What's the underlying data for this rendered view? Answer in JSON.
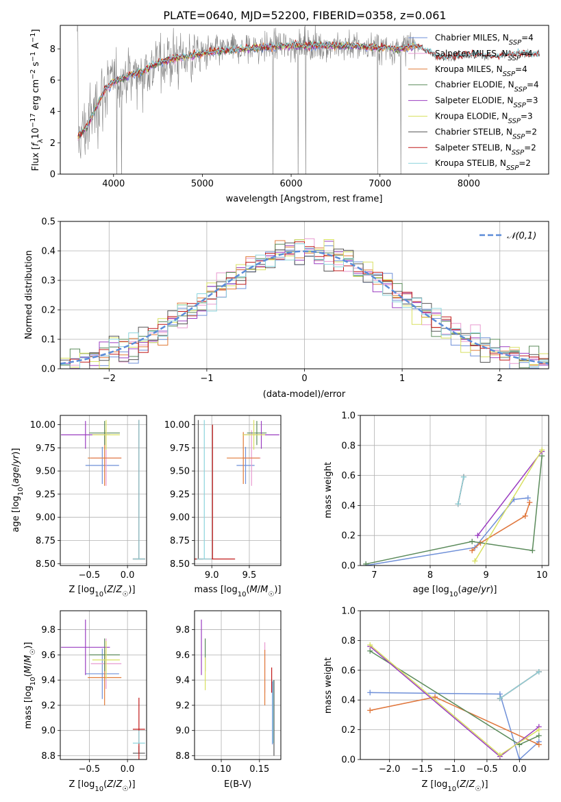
{
  "title": "PLATE=0640, MJD=52200, FIBERID=0358, z=0.061",
  "colors": {
    "Chabrier MILES": "#6e8fd8",
    "Salpeter MILES": "#e89ad0",
    "Kroupa MILES": "#e07a38",
    "Chabrier ELODIE": "#5a8a5a",
    "Salpeter ELODIE": "#9a3cc0",
    "Kroupa ELODIE": "#d8e060",
    "Chabrier STELIB": "#555555",
    "Salpeter STELIB": "#c01818",
    "Kroupa STELIB": "#8ad4dc",
    "data": "#808080",
    "normal": "#5b8bd8"
  },
  "chart_data": [
    {
      "type": "line",
      "xlabel": "wavelength [Angstrom, rest frame]",
      "ylabel": "Flux [f_λ 10^-17 erg cm^-2 s^-1 A^-1]",
      "xlim": [
        3400,
        8900
      ],
      "ylim": [
        0,
        9.5
      ],
      "xticks": [
        4000,
        5000,
        6000,
        7000,
        8000
      ],
      "yticks": [
        0,
        2,
        4,
        6,
        8
      ],
      "legend_position": "top-right",
      "legend": [
        {
          "name": "Chabrier MILES",
          "nssp": "4"
        },
        {
          "name": "Salpeter MILES",
          "nssp": "4"
        },
        {
          "name": "Kroupa MILES",
          "nssp": "4"
        },
        {
          "name": "Chabrier ELODIE",
          "nssp": "4"
        },
        {
          "name": "Salpeter ELODIE",
          "nssp": "3"
        },
        {
          "name": "Kroupa ELODIE",
          "nssp": "3"
        },
        {
          "name": "Chabrier STELIB",
          "nssp": "2"
        },
        {
          "name": "Salpeter STELIB",
          "nssp": "2"
        },
        {
          "name": "Kroupa STELIB",
          "nssp": "2"
        }
      ],
      "continuum": [
        [
          3600,
          2.4
        ],
        [
          3700,
          3.0
        ],
        [
          3800,
          4.2
        ],
        [
          3900,
          5.4
        ],
        [
          4000,
          5.9
        ],
        [
          4100,
          6.1
        ],
        [
          4200,
          6.4
        ],
        [
          4300,
          6.5
        ],
        [
          4400,
          6.8
        ],
        [
          4500,
          7.1
        ],
        [
          4700,
          7.4
        ],
        [
          4900,
          7.6
        ],
        [
          5100,
          7.8
        ],
        [
          5300,
          7.9
        ],
        [
          5500,
          8.0
        ],
        [
          5700,
          8.1
        ],
        [
          6000,
          8.2
        ],
        [
          6300,
          8.2
        ],
        [
          6600,
          8.2
        ],
        [
          6900,
          8.1
        ],
        [
          7200,
          8.0
        ],
        [
          7400,
          8.2
        ],
        [
          7700,
          7.4
        ],
        [
          8000,
          7.6
        ],
        [
          8300,
          7.5
        ],
        [
          8600,
          7.7
        ],
        [
          8800,
          7.6
        ]
      ]
    },
    {
      "type": "histogram",
      "xlabel": "(data-model)/error",
      "ylabel": "Normed distribution",
      "xlim": [
        -2.5,
        2.5
      ],
      "ylim": [
        0,
        0.5
      ],
      "xticks": [
        -2,
        -1,
        0,
        1,
        2
      ],
      "yticks": [
        0.0,
        0.1,
        0.2,
        0.3,
        0.4,
        0.5
      ],
      "legend": "𝒩(0,1)",
      "legend_position": "top-right",
      "bin_width": 0.1
    },
    {
      "type": "scatter",
      "xlabel": "Z [log10(Z/Z☉)]",
      "ylabel": "age  [log10(age/yr)]",
      "xlim": [
        -0.88,
        0.25
      ],
      "ylim": [
        8.48,
        10.1
      ],
      "xticks": [
        -0.5,
        0.0
      ],
      "yticks": [
        8.5,
        8.75,
        9.0,
        9.25,
        9.5,
        9.75,
        10.0
      ],
      "series": [
        {
          "name": "Chabrier MILES",
          "x": -0.33,
          "y": 9.56,
          "xerr": 0.22,
          "yerr": 0.2
        },
        {
          "name": "Salpeter MILES",
          "x": -0.28,
          "y": 9.64,
          "xerr": 0.2,
          "yerr": 0.3
        },
        {
          "name": "Kroupa MILES",
          "x": -0.3,
          "y": 9.64,
          "xerr": 0.22,
          "yerr": 0.3
        },
        {
          "name": "Chabrier ELODIE",
          "x": -0.3,
          "y": 9.91,
          "xerr": 0.2,
          "yerr": 0.13
        },
        {
          "name": "Salpeter ELODIE",
          "x": -0.55,
          "y": 9.89,
          "xerr": 0.32,
          "yerr": 0.15
        },
        {
          "name": "Kroupa ELODIE",
          "x": -0.28,
          "y": 9.89,
          "xerr": 0.18,
          "yerr": 0.16
        },
        {
          "name": "Chabrier STELIB",
          "x": 0.15,
          "y": 8.55,
          "xerr": 0.08,
          "yerr": 1.5
        },
        {
          "name": "Salpeter STELIB",
          "x": 0.15,
          "y": 8.55,
          "xerr": 0.08,
          "yerr": 1.5
        },
        {
          "name": "Kroupa STELIB",
          "x": 0.15,
          "y": 8.55,
          "xerr": 0.08,
          "yerr": 1.5
        }
      ]
    },
    {
      "type": "scatter",
      "xlabel": "mass [log10(M/M☉)]",
      "xlim": [
        8.77,
        9.92
      ],
      "ylim": [
        8.48,
        10.1
      ],
      "xticks": [
        9.0,
        9.5
      ],
      "yticks": [
        8.5,
        8.75,
        9.0,
        9.25,
        9.5,
        9.75,
        10.0
      ],
      "series": [
        {
          "name": "Chabrier MILES",
          "x": 9.45,
          "y": 9.56,
          "xerr": 0.12,
          "yerr": 0.2
        },
        {
          "name": "Salpeter MILES",
          "x": 9.53,
          "y": 9.64,
          "xerr": 0.12,
          "yerr": 0.3
        },
        {
          "name": "Kroupa MILES",
          "x": 9.42,
          "y": 9.64,
          "xerr": 0.22,
          "yerr": 0.28
        },
        {
          "name": "Chabrier ELODIE",
          "x": 9.6,
          "y": 9.91,
          "xerr": 0.13,
          "yerr": 0.13
        },
        {
          "name": "Salpeter ELODIE",
          "x": 9.66,
          "y": 9.89,
          "xerr": 0.24,
          "yerr": 0.15
        },
        {
          "name": "Kroupa ELODIE",
          "x": 9.56,
          "y": 9.89,
          "xerr": 0.15,
          "yerr": 0.16
        },
        {
          "name": "Chabrier STELIB",
          "x": 8.82,
          "y": 8.55,
          "xerr": 0.06,
          "yerr": 1.5
        },
        {
          "name": "Salpeter STELIB",
          "x": 9.01,
          "y": 8.55,
          "xerr": 0.3,
          "yerr": 1.45
        },
        {
          "name": "Kroupa STELIB",
          "x": 8.9,
          "y": 8.55,
          "xerr": 0.1,
          "yerr": 1.5
        }
      ]
    },
    {
      "type": "line",
      "xlabel": "age  [log10(age/yr)]",
      "ylabel": "mass weight",
      "xlim": [
        6.75,
        10.12
      ],
      "ylim": [
        0.0,
        1.0
      ],
      "xticks": [
        7,
        8,
        9,
        10
      ],
      "yticks": [
        0.0,
        0.2,
        0.4,
        0.6,
        0.8,
        1.0
      ],
      "series": [
        {
          "name": "Chabrier MILES",
          "points": [
            [
              6.85,
              0.0
            ],
            [
              8.8,
              0.12
            ],
            [
              9.5,
              0.44
            ],
            [
              9.75,
              0.45
            ]
          ]
        },
        {
          "name": "Salpeter MILES",
          "points": [
            [
              8.75,
              0.1
            ],
            [
              8.9,
              0.15
            ],
            [
              9.7,
              0.33
            ],
            [
              9.78,
              0.42
            ]
          ]
        },
        {
          "name": "Kroupa MILES",
          "points": [
            [
              8.75,
              0.1
            ],
            [
              8.9,
              0.15
            ],
            [
              9.7,
              0.33
            ],
            [
              9.78,
              0.42
            ]
          ]
        },
        {
          "name": "Chabrier ELODIE",
          "points": [
            [
              6.85,
              0.01
            ],
            [
              8.75,
              0.16
            ],
            [
              9.83,
              0.1
            ],
            [
              10.0,
              0.73
            ]
          ]
        },
        {
          "name": "Salpeter ELODIE",
          "points": [
            [
              8.85,
              0.2
            ],
            [
              10.0,
              0.76
            ]
          ]
        },
        {
          "name": "Kroupa ELODIE",
          "points": [
            [
              8.8,
              0.03
            ],
            [
              10.0,
              0.77
            ]
          ]
        },
        {
          "name": "Chabrier STELIB",
          "points": [
            [
              8.5,
              0.41
            ],
            [
              8.6,
              0.59
            ]
          ]
        },
        {
          "name": "Salpeter STELIB",
          "points": [
            [
              8.5,
              0.41
            ],
            [
              8.6,
              0.59
            ]
          ]
        },
        {
          "name": "Kroupa STELIB",
          "points": [
            [
              8.5,
              0.41
            ],
            [
              8.6,
              0.59
            ]
          ]
        }
      ]
    },
    {
      "type": "scatter",
      "xlabel": "Z [log10(Z/Z☉)]",
      "ylabel": "mass [log10(M/M☉)]",
      "xlim": [
        -0.88,
        0.25
      ],
      "ylim": [
        8.77,
        9.95
      ],
      "xticks": [
        -0.5,
        0.0
      ],
      "yticks": [
        8.8,
        9.0,
        9.2,
        9.4,
        9.6,
        9.8
      ],
      "series": [
        {
          "name": "Chabrier MILES",
          "x": -0.33,
          "y": 9.45,
          "xerr": 0.22,
          "yerr": 0.2
        },
        {
          "name": "Salpeter MILES",
          "x": -0.28,
          "y": 9.53,
          "xerr": 0.2,
          "yerr": 0.2
        },
        {
          "name": "Kroupa MILES",
          "x": -0.3,
          "y": 9.42,
          "xerr": 0.22,
          "yerr": 0.22
        },
        {
          "name": "Chabrier ELODIE",
          "x": -0.3,
          "y": 9.6,
          "xerr": 0.2,
          "yerr": 0.13
        },
        {
          "name": "Salpeter ELODIE",
          "x": -0.55,
          "y": 9.66,
          "xerr": 0.32,
          "yerr": 0.22
        },
        {
          "name": "Kroupa ELODIE",
          "x": -0.28,
          "y": 9.56,
          "xerr": 0.18,
          "yerr": 0.15
        },
        {
          "name": "Chabrier STELIB",
          "x": 0.15,
          "y": 8.82,
          "xerr": 0.08,
          "yerr": 0.06
        },
        {
          "name": "Salpeter STELIB",
          "x": 0.15,
          "y": 9.01,
          "xerr": 0.08,
          "yerr": 0.25
        },
        {
          "name": "Kroupa STELIB",
          "x": 0.15,
          "y": 8.9,
          "xerr": 0.08,
          "yerr": 0.1
        }
      ]
    },
    {
      "type": "scatter",
      "xlabel": "E(B-V)",
      "xlim": [
        0.065,
        0.178
      ],
      "ylim": [
        8.77,
        9.95
      ],
      "xticks": [
        0.1,
        0.15
      ],
      "yticks": [
        8.8,
        9.0,
        9.2,
        9.4,
        9.6,
        9.8
      ],
      "series": [
        {
          "name": "Chabrier MILES",
          "x": 0.167,
          "y": 9.14,
          "yerr": 0.25
        },
        {
          "name": "Salpeter MILES",
          "x": 0.157,
          "y": 9.5,
          "yerr": 0.2
        },
        {
          "name": "Kroupa MILES",
          "x": 0.157,
          "y": 9.42,
          "yerr": 0.22
        },
        {
          "name": "Chabrier ELODIE",
          "x": 0.079,
          "y": 9.6,
          "yerr": 0.13
        },
        {
          "name": "Salpeter ELODIE",
          "x": 0.074,
          "y": 9.66,
          "yerr": 0.22
        },
        {
          "name": "Kroupa ELODIE",
          "x": 0.079,
          "y": 9.45,
          "yerr": 0.13
        },
        {
          "name": "Chabrier STELIB",
          "x": 0.169,
          "y": 9.1,
          "yerr": 0.3
        },
        {
          "name": "Salpeter STELIB",
          "x": 0.166,
          "y": 9.4,
          "yerr": 0.1
        },
        {
          "name": "Kroupa STELIB",
          "x": 0.168,
          "y": 9.15,
          "yerr": 0.25
        }
      ]
    },
    {
      "type": "line",
      "xlabel": "Z [log10(Z/Z☉)]",
      "ylabel": "mass weight",
      "xlim": [
        -2.45,
        0.45
      ],
      "ylim": [
        0.0,
        1.0
      ],
      "xticks": [
        -2.0,
        -1.5,
        -1.0,
        -0.5,
        0.0
      ],
      "yticks": [
        0.0,
        0.2,
        0.4,
        0.6,
        0.8,
        1.0
      ],
      "series": [
        {
          "name": "Chabrier MILES",
          "points": [
            [
              -2.3,
              0.45
            ],
            [
              -0.3,
              0.44
            ],
            [
              0.0,
              0.0
            ],
            [
              0.3,
              0.12
            ]
          ]
        },
        {
          "name": "Salpeter MILES",
          "points": [
            [
              -2.3,
              0.33
            ],
            [
              -1.3,
              0.42
            ],
            [
              0.3,
              0.1
            ]
          ]
        },
        {
          "name": "Kroupa MILES",
          "points": [
            [
              -2.3,
              0.33
            ],
            [
              -1.3,
              0.42
            ],
            [
              0.3,
              0.1
            ]
          ]
        },
        {
          "name": "Chabrier ELODIE",
          "points": [
            [
              -2.3,
              0.73
            ],
            [
              0.0,
              0.1
            ],
            [
              0.3,
              0.16
            ]
          ]
        },
        {
          "name": "Salpeter ELODIE",
          "points": [
            [
              -2.3,
              0.76
            ],
            [
              -0.3,
              0.02
            ],
            [
              0.3,
              0.22
            ]
          ]
        },
        {
          "name": "Kroupa ELODIE",
          "points": [
            [
              -2.3,
              0.77
            ],
            [
              -0.3,
              0.03
            ],
            [
              0.3,
              0.2
            ]
          ]
        },
        {
          "name": "Chabrier STELIB",
          "points": [
            [
              -0.3,
              0.41
            ],
            [
              0.3,
              0.59
            ]
          ]
        },
        {
          "name": "Salpeter STELIB",
          "points": [
            [
              -0.3,
              0.41
            ],
            [
              0.3,
              0.59
            ]
          ]
        },
        {
          "name": "Kroupa STELIB",
          "points": [
            [
              -0.3,
              0.41
            ],
            [
              0.3,
              0.59
            ]
          ]
        }
      ]
    }
  ]
}
